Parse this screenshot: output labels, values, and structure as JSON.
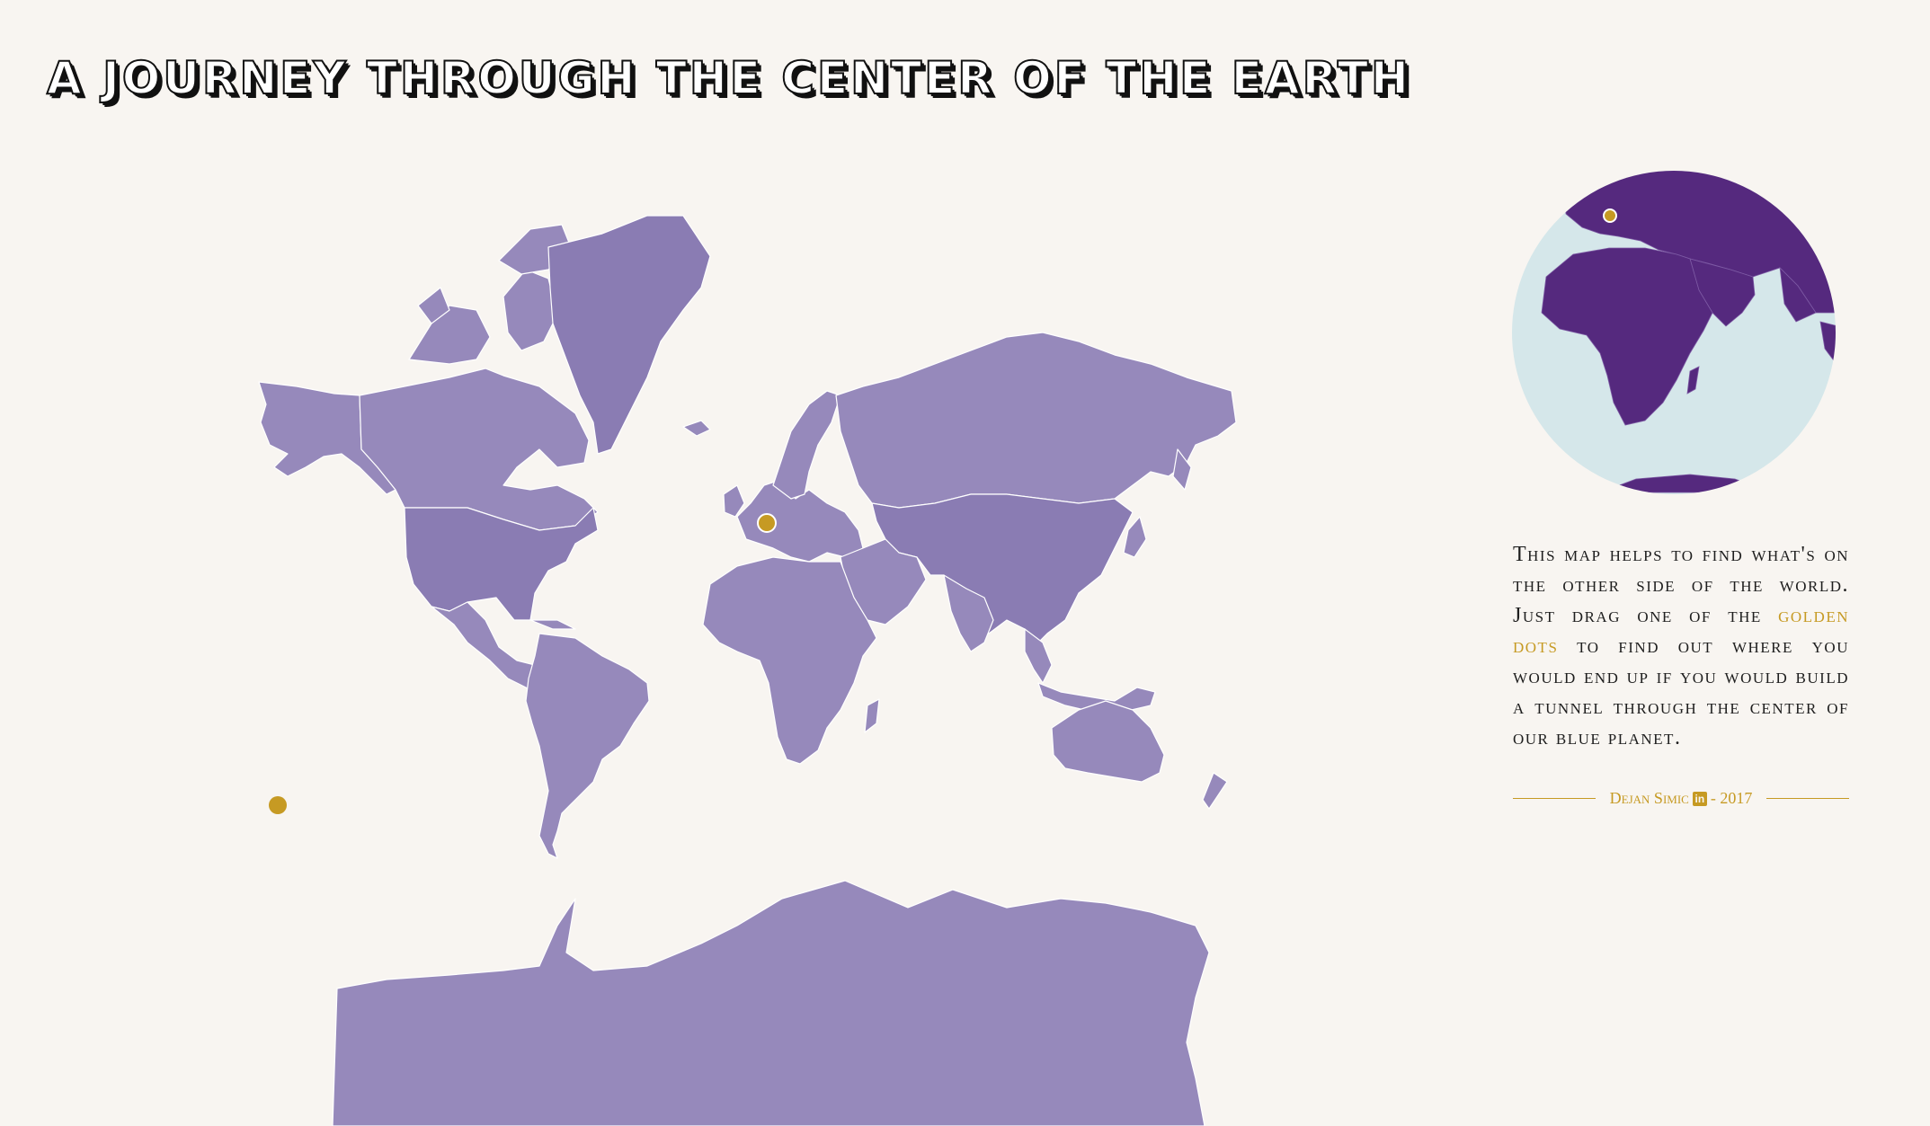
{
  "header": {
    "title": "A Journey Through the Center of the Earth"
  },
  "description": {
    "text_before": "This map helps to find what's on the other side of the world. Just drag one of the ",
    "highlight": "golden dots",
    "text_after": " to find out where you would end up if you would build a tunnel through the center of our blue planet."
  },
  "credit": {
    "author": "Dejan Simic",
    "linkedin_icon": "in",
    "year": "- 2017"
  },
  "colors": {
    "land": "#9689bb",
    "land_dark": "#8275ae",
    "globe_land": "#55297e",
    "ocean": "#d5e7ea",
    "gold": "#c69a23",
    "background": "#f8f5f1"
  },
  "markers": {
    "origin_label": "drag-handle-origin",
    "antipode_label": "drag-handle-antipode"
  }
}
